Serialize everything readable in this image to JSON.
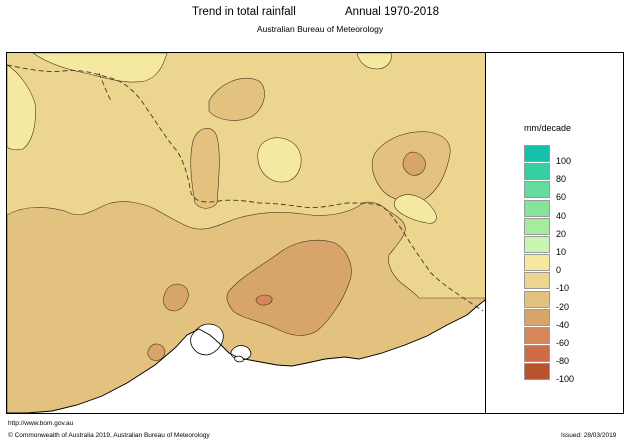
{
  "header": {
    "title": "Trend in total rainfall",
    "period": "Annual 1970-2018",
    "agency": "Australian Bureau of Meteorology"
  },
  "legend": {
    "units": "mm/decade",
    "levels": [
      {
        "label": "100",
        "color": "#14c1ad"
      },
      {
        "label": "80",
        "color": "#36cfa0"
      },
      {
        "label": "60",
        "color": "#62db9d"
      },
      {
        "label": "40",
        "color": "#85e49a"
      },
      {
        "label": "20",
        "color": "#a6ec9e"
      },
      {
        "label": "10",
        "color": "#c9f5b2"
      },
      {
        "label": "0",
        "color": "#f5e8a0"
      },
      {
        "label": "-10",
        "color": "#ecd58e"
      },
      {
        "label": "-20",
        "color": "#e3c17e"
      },
      {
        "label": "-40",
        "color": "#d7a56a"
      },
      {
        "label": "-60",
        "color": "#d6875a"
      },
      {
        "label": "-80",
        "color": "#cf6c47"
      },
      {
        "label": "-100",
        "color": "#b9532f"
      }
    ]
  },
  "footer": {
    "url": "http://www.bom.gov.au",
    "copyright": "© Commonwealth of Australia 2019, Australian Bureau of Meteorology",
    "issued": "Issued: 28/03/2019"
  },
  "map": {
    "colors": {
      "ocean": "#ffffff",
      "band_minus10_0": "#f5e8a0",
      "band_minus20_minus10": "#ecd58e",
      "band_minus40_minus20": "#e3c17e",
      "band_minus60_minus40": "#d7a56a",
      "band_minus80_minus60": "#d6875a"
    }
  }
}
